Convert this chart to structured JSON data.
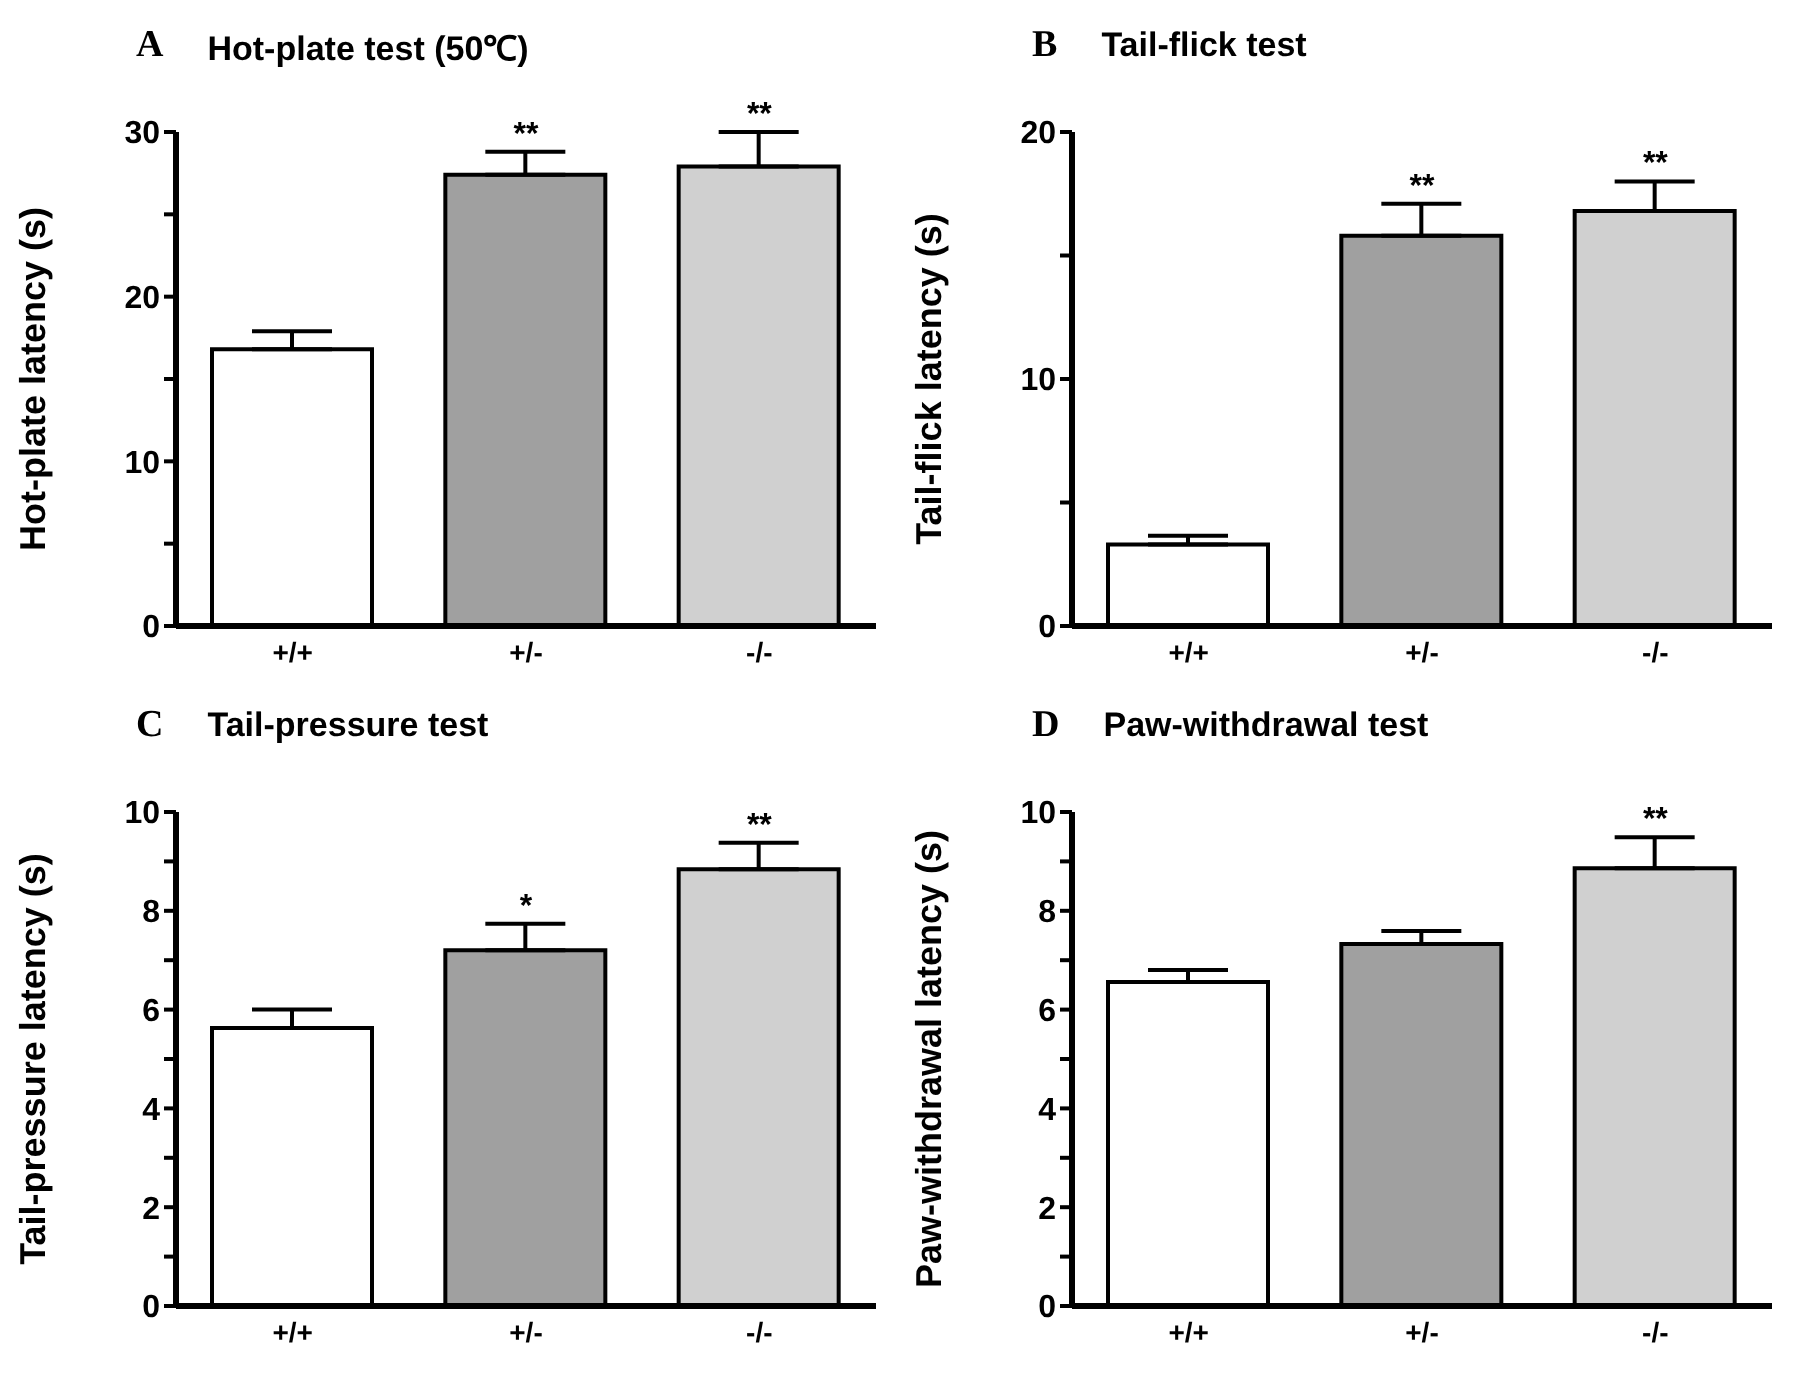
{
  "chart_data": [
    {
      "type": "bar",
      "title": "Hot-plate test (50℃)",
      "ylabel": "Hot-plate latency (s)",
      "categories": [
        "+/+",
        "+/-",
        "-/-"
      ],
      "values": [
        16.8,
        27.4,
        27.9
      ],
      "errors": [
        [
          16.8,
          17.9
        ],
        [
          27.4,
          28.8
        ],
        [
          27.9,
          30.0
        ]
      ],
      "colors": [
        "#ffffff",
        "#a0a0a0",
        "#d0d0d0"
      ],
      "ylim": [
        0,
        30
      ],
      "yticks": [
        0,
        {
          "value": 5,
          "label": null
        },
        10,
        {
          "value": 15,
          "label": null
        },
        20,
        {
          "value": 25,
          "label": null
        },
        30
      ],
      "grid": false,
      "legend": false,
      "annotations": [
        "A",
        {
          "text": "**",
          "x": "+/-",
          "y": 28.8
        },
        {
          "text": "**",
          "x": "-/-",
          "y": 30.0
        }
      ]
    },
    {
      "type": "bar",
      "title": "Tail-flick test",
      "ylabel": "Tail-flick latency (s)",
      "categories": [
        "+/+",
        "+/-",
        "-/-"
      ],
      "values": [
        3.3,
        15.8,
        16.8
      ],
      "errors": [
        [
          3.3,
          3.65
        ],
        [
          15.8,
          17.1
        ],
        [
          16.8,
          18.0
        ]
      ],
      "colors": [
        "#ffffff",
        "#a0a0a0",
        "#d0d0d0"
      ],
      "ylim": [
        0,
        20
      ],
      "yticks": [
        0,
        {
          "value": 5,
          "label": null
        },
        10,
        {
          "value": 15,
          "label": null
        },
        20
      ],
      "grid": false,
      "legend": false,
      "annotations": [
        "B",
        {
          "text": "**",
          "x": "+/-",
          "y": 17.1
        },
        {
          "text": "**",
          "x": "-/-",
          "y": 18.0
        }
      ]
    },
    {
      "type": "bar",
      "title": "Tail-pressure test",
      "ylabel": "Tail-pressure latency (s)",
      "categories": [
        "+/+",
        "+/-",
        "-/-"
      ],
      "values": [
        5.63,
        7.2,
        8.84
      ],
      "errors": [
        [
          5.63,
          6.0
        ],
        [
          7.2,
          7.74
        ],
        [
          8.84,
          9.38
        ]
      ],
      "colors": [
        "#ffffff",
        "#a0a0a0",
        "#d0d0d0"
      ],
      "ylim": [
        0,
        10
      ],
      "yticks": [
        0,
        {
          "value": 1,
          "label": null
        },
        2,
        {
          "value": 3,
          "label": null
        },
        4,
        {
          "value": 5,
          "label": null
        },
        6,
        {
          "value": 7,
          "label": null
        },
        8,
        {
          "value": 9,
          "label": null
        },
        10
      ],
      "grid": false,
      "legend": false,
      "annotations": [
        "C",
        {
          "text": "*",
          "x": "+/-",
          "y": 7.74
        },
        {
          "text": "**",
          "x": "-/-",
          "y": 9.38
        }
      ]
    },
    {
      "type": "bar",
      "title": "Paw-withdrawal test",
      "ylabel": "Paw-withdrawal latency (s)",
      "categories": [
        "+/+",
        "+/-",
        "-/-"
      ],
      "values": [
        6.56,
        7.33,
        8.86
      ],
      "errors": [
        [
          6.56,
          6.8
        ],
        [
          7.33,
          7.59
        ],
        [
          8.86,
          9.49
        ]
      ],
      "colors": [
        "#ffffff",
        "#a0a0a0",
        "#d0d0d0"
      ],
      "ylim": [
        0,
        10
      ],
      "yticks": [
        0,
        {
          "value": 1,
          "label": null
        },
        2,
        {
          "value": 3,
          "label": null
        },
        4,
        {
          "value": 5,
          "label": null
        },
        6,
        {
          "value": 7,
          "label": null
        },
        8,
        {
          "value": 9,
          "label": null
        },
        10
      ],
      "grid": false,
      "legend": false,
      "annotations": [
        "D",
        {
          "text": "**",
          "x": "-/-",
          "y": 9.49
        }
      ]
    }
  ]
}
